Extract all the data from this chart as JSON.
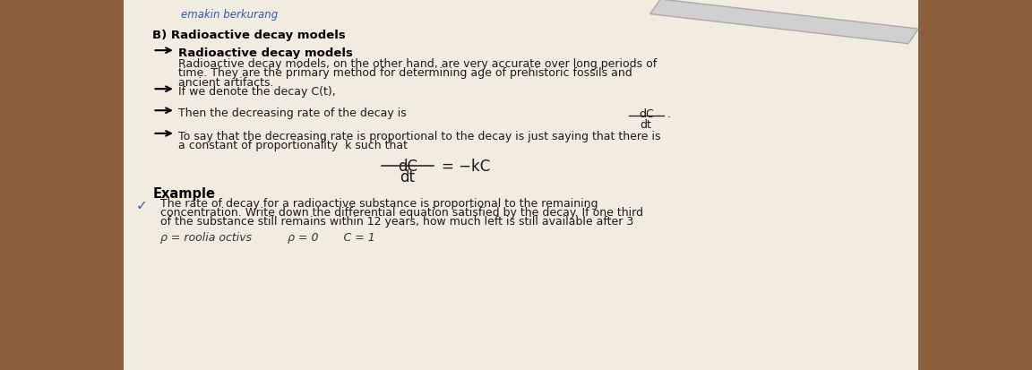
{
  "bg_color": "#8B5E3C",
  "paper_color": "#f0ece0",
  "title_top": "B) Radioactive decay models",
  "handwritten_top": "emakin berkurang",
  "bullet1_header": "Radioactive decay models",
  "bullet1_text1": "Radioactive decay models, on the other hand, are very accurate over long periods of",
  "bullet1_text2": "time. They are the primary method for determining age of prehistoric fossils and",
  "bullet1_text3": "ancient artifacts.",
  "bullet2_text": "If we denote the decay C(t),",
  "bullet3_text": "Then the decreasing rate of the decay is",
  "bullet3_fraction_num": "dC",
  "bullet3_fraction_den": "dt",
  "bullet4_text1": "To say that the decreasing rate is proportional to the decay is just saying that there is",
  "bullet4_text2": "a constant of proportionality  k such that",
  "equation_num": "dC",
  "equation_den": "dt",
  "equation_rhs": "= −kC",
  "example_header": "Example",
  "example_text1": "The rate of decay for a radioactive substance is proportional to the remaining",
  "example_text2": "concentration. Write down the differential equation satisfied by the decay. If one third",
  "example_text3": "of the substance still remains within 12 years, how much left is still available after 3",
  "bottom_text": "ρ = roolia octivs          ρ = 0       C = 1",
  "text_color": "#1a1a1a",
  "bold_color": "#000000"
}
